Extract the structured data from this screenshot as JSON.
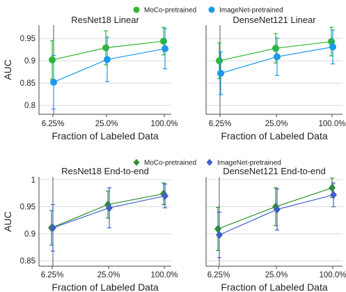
{
  "legends": [
    {
      "series": [
        {
          "name": "MoCo-pretrained",
          "color": "#2eb82e",
          "marker": "circle"
        },
        {
          "name": "ImageNet-pretrained",
          "color": "#1a9ae8",
          "marker": "circle"
        }
      ]
    },
    {
      "series": [
        {
          "name": "MoCo-pretrained",
          "color": "#2f8f2f",
          "marker": "diamond"
        },
        {
          "name": "ImageNet-pretrained",
          "color": "#3f5fc8",
          "marker": "diamond"
        }
      ]
    }
  ],
  "chart_data": [
    {
      "type": "line",
      "title": "ResNet18 Linear",
      "xlabel": "Fraction of Labeled Data",
      "ylabel": "AUC",
      "categories": [
        "6.25%",
        "25.0%",
        "100.0%"
      ],
      "yticks": [
        "0.8",
        "0.85",
        "0.9",
        "0.95"
      ],
      "ylim": [
        0.78,
        0.98
      ],
      "series": [
        {
          "name": "MoCo-pretrained",
          "color": "#2eb82e",
          "values": [
            0.902,
            0.929,
            0.944
          ],
          "err": [
            0.043,
            0.038,
            0.031
          ]
        },
        {
          "name": "ImageNet-pretrained",
          "color": "#1a9ae8",
          "values": [
            0.852,
            0.903,
            0.927
          ],
          "err": [
            0.06,
            0.05,
            0.045
          ]
        }
      ]
    },
    {
      "type": "line",
      "title": "DenseNet121 Linear",
      "xlabel": "Fraction of Labeled Data",
      "ylabel": "",
      "categories": [
        "6.25%",
        "25.0%",
        "100.0%"
      ],
      "yticks": [],
      "ylim": [
        0.78,
        0.98
      ],
      "series": [
        {
          "name": "MoCo-pretrained",
          "color": "#2eb82e",
          "values": [
            0.9,
            0.928,
            0.943
          ],
          "err": [
            0.04,
            0.033,
            0.032
          ]
        },
        {
          "name": "ImageNet-pretrained",
          "color": "#1a9ae8",
          "values": [
            0.872,
            0.909,
            0.931
          ],
          "err": [
            0.048,
            0.042,
            0.038
          ]
        }
      ]
    },
    {
      "type": "line",
      "title": "ResNet18 End-to-end",
      "xlabel": "Fraction of Labeled Data",
      "ylabel": "AUC",
      "categories": [
        "6.25%",
        "25.0%",
        "100.0%"
      ],
      "yticks": [
        "0.85",
        "0.9",
        "0.95",
        "1"
      ],
      "ylim": [
        0.84,
        1.005
      ],
      "series": [
        {
          "name": "MoCo-pretrained",
          "color": "#2f8f2f",
          "values": [
            0.911,
            0.954,
            0.974
          ],
          "err": [
            0.032,
            0.025,
            0.02
          ]
        },
        {
          "name": "ImageNet-pretrained",
          "color": "#3f5fc8",
          "values": [
            0.911,
            0.948,
            0.97
          ],
          "err": [
            0.043,
            0.037,
            0.022
          ]
        }
      ]
    },
    {
      "type": "line",
      "title": "DenseNet121 End-to-end",
      "xlabel": "Fraction of Labeled Data",
      "ylabel": "",
      "categories": [
        "6.25%",
        "25.0%",
        "100.0%"
      ],
      "yticks": [],
      "ylim": [
        0.84,
        1.005
      ],
      "series": [
        {
          "name": "MoCo-pretrained",
          "color": "#2f8f2f",
          "values": [
            0.909,
            0.95,
            0.985
          ],
          "err": [
            0.04,
            0.035,
            0.018
          ]
        },
        {
          "name": "ImageNet-pretrained",
          "color": "#3f5fc8",
          "values": [
            0.898,
            0.945,
            0.972
          ],
          "err": [
            0.042,
            0.038,
            0.022
          ]
        }
      ]
    }
  ]
}
